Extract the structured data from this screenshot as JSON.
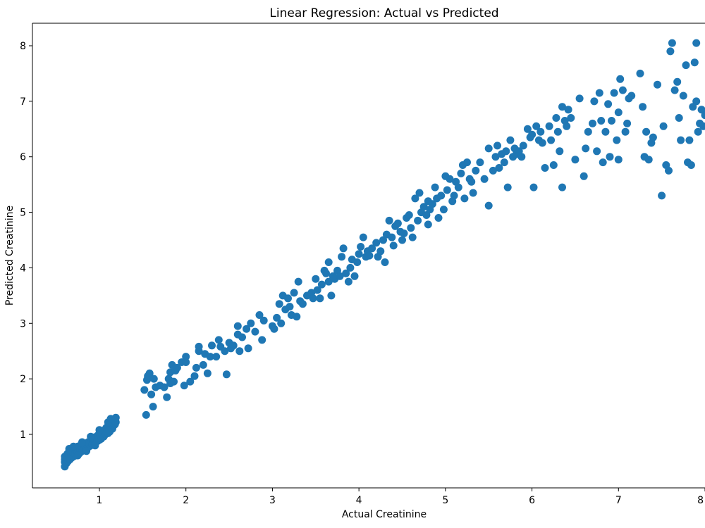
{
  "chart_data": {
    "type": "scatter",
    "title": "Linear Regression: Actual vs Predicted",
    "xlabel": "Actual Creatinine",
    "ylabel": "Predicted Creatinine",
    "xlim": [
      0.25,
      8.0
    ],
    "ylim": [
      0.3,
      8.4
    ],
    "xticks": [
      1,
      2,
      3,
      4,
      5,
      6,
      7,
      8
    ],
    "yticks": [
      1,
      2,
      3,
      4,
      5,
      6,
      7,
      8
    ],
    "grid": false,
    "marker_color": "#1f77b4",
    "points": [
      [
        0.6,
        0.42
      ],
      [
        0.6,
        0.5
      ],
      [
        0.6,
        0.55
      ],
      [
        0.6,
        0.6
      ],
      [
        0.62,
        0.48
      ],
      [
        0.62,
        0.58
      ],
      [
        0.63,
        0.65
      ],
      [
        0.64,
        0.52
      ],
      [
        0.65,
        0.6
      ],
      [
        0.65,
        0.7
      ],
      [
        0.66,
        0.55
      ],
      [
        0.67,
        0.62
      ],
      [
        0.68,
        0.68
      ],
      [
        0.68,
        0.58
      ],
      [
        0.7,
        0.6
      ],
      [
        0.7,
        0.72
      ],
      [
        0.7,
        0.66
      ],
      [
        0.72,
        0.64
      ],
      [
        0.72,
        0.75
      ],
      [
        0.73,
        0.7
      ],
      [
        0.74,
        0.62
      ],
      [
        0.75,
        0.68
      ],
      [
        0.75,
        0.78
      ],
      [
        0.76,
        0.72
      ],
      [
        0.77,
        0.66
      ],
      [
        0.78,
        0.74
      ],
      [
        0.78,
        0.8
      ],
      [
        0.8,
        0.7
      ],
      [
        0.8,
        0.77
      ],
      [
        0.8,
        0.82
      ],
      [
        0.82,
        0.75
      ],
      [
        0.82,
        0.72
      ],
      [
        0.83,
        0.8
      ],
      [
        0.84,
        0.78
      ],
      [
        0.85,
        0.84
      ],
      [
        0.85,
        0.74
      ],
      [
        0.86,
        0.8
      ],
      [
        0.87,
        0.86
      ],
      [
        0.88,
        0.78
      ],
      [
        0.88,
        0.83
      ],
      [
        0.9,
        0.8
      ],
      [
        0.9,
        0.88
      ],
      [
        0.9,
        0.85
      ],
      [
        0.91,
        0.92
      ],
      [
        0.92,
        0.82
      ],
      [
        0.93,
        0.87
      ],
      [
        0.94,
        0.9
      ],
      [
        0.95,
        0.85
      ],
      [
        0.95,
        0.95
      ],
      [
        0.96,
        0.9
      ],
      [
        0.97,
        0.93
      ],
      [
        0.98,
        0.88
      ],
      [
        0.98,
        0.98
      ],
      [
        1.0,
        0.9
      ],
      [
        1.0,
        0.95
      ],
      [
        1.0,
        1.02
      ],
      [
        1.01,
        0.97
      ],
      [
        1.02,
        0.92
      ],
      [
        1.03,
        1.0
      ],
      [
        1.04,
        1.05
      ],
      [
        1.05,
        0.96
      ],
      [
        1.05,
        1.02
      ],
      [
        1.06,
        1.08
      ],
      [
        1.07,
        1.0
      ],
      [
        1.08,
        1.05
      ],
      [
        1.08,
        1.12
      ],
      [
        1.1,
        1.02
      ],
      [
        1.1,
        1.08
      ],
      [
        1.1,
        1.15
      ],
      [
        1.11,
        1.1
      ],
      [
        1.12,
        1.05
      ],
      [
        1.13,
        1.12
      ],
      [
        1.14,
        1.18
      ],
      [
        1.15,
        1.1
      ],
      [
        1.15,
        1.2
      ],
      [
        1.16,
        1.15
      ],
      [
        1.17,
        1.25
      ],
      [
        1.18,
        1.18
      ],
      [
        1.19,
        1.22
      ],
      [
        1.19,
        1.3
      ],
      [
        0.65,
        0.74
      ],
      [
        0.7,
        0.78
      ],
      [
        0.8,
        0.86
      ],
      [
        0.9,
        0.96
      ],
      [
        1.0,
        1.08
      ],
      [
        1.1,
        1.22
      ],
      [
        1.13,
        1.28
      ],
      [
        0.75,
        0.62
      ],
      [
        0.85,
        0.7
      ],
      [
        0.95,
        0.8
      ],
      [
        1.52,
        1.8
      ],
      [
        1.54,
        1.35
      ],
      [
        1.55,
        1.98
      ],
      [
        1.56,
        2.05
      ],
      [
        1.58,
        2.1
      ],
      [
        1.6,
        1.72
      ],
      [
        1.62,
        1.5
      ],
      [
        1.63,
        2.0
      ],
      [
        1.65,
        1.85
      ],
      [
        1.7,
        1.88
      ],
      [
        1.75,
        1.85
      ],
      [
        1.78,
        1.67
      ],
      [
        1.8,
        2.0
      ],
      [
        1.82,
        1.92
      ],
      [
        1.82,
        2.12
      ],
      [
        1.84,
        2.25
      ],
      [
        1.86,
        1.95
      ],
      [
        1.88,
        2.15
      ],
      [
        1.9,
        2.2
      ],
      [
        1.95,
        2.3
      ],
      [
        1.98,
        1.88
      ],
      [
        2.0,
        2.4
      ],
      [
        2.0,
        2.3
      ],
      [
        2.05,
        1.95
      ],
      [
        2.1,
        2.05
      ],
      [
        2.12,
        2.2
      ],
      [
        2.15,
        2.5
      ],
      [
        2.15,
        2.58
      ],
      [
        2.2,
        2.25
      ],
      [
        2.22,
        2.45
      ],
      [
        2.25,
        2.1
      ],
      [
        2.28,
        2.4
      ],
      [
        2.3,
        2.6
      ],
      [
        2.35,
        2.4
      ],
      [
        2.38,
        2.7
      ],
      [
        2.4,
        2.58
      ],
      [
        2.45,
        2.5
      ],
      [
        2.47,
        2.08
      ],
      [
        2.5,
        2.65
      ],
      [
        2.52,
        2.55
      ],
      [
        2.55,
        2.6
      ],
      [
        2.6,
        2.8
      ],
      [
        2.6,
        2.95
      ],
      [
        2.62,
        2.5
      ],
      [
        2.65,
        2.75
      ],
      [
        2.7,
        2.9
      ],
      [
        2.72,
        2.55
      ],
      [
        2.75,
        3.0
      ],
      [
        2.8,
        2.85
      ],
      [
        2.85,
        3.15
      ],
      [
        2.88,
        2.7
      ],
      [
        2.9,
        3.05
      ],
      [
        3.0,
        2.95
      ],
      [
        3.02,
        2.9
      ],
      [
        3.05,
        3.1
      ],
      [
        3.08,
        3.35
      ],
      [
        3.1,
        3.0
      ],
      [
        3.12,
        3.5
      ],
      [
        3.15,
        3.25
      ],
      [
        3.18,
        3.45
      ],
      [
        3.2,
        3.3
      ],
      [
        3.22,
        3.15
      ],
      [
        3.25,
        3.55
      ],
      [
        3.28,
        3.12
      ],
      [
        3.3,
        3.75
      ],
      [
        3.32,
        3.4
      ],
      [
        3.35,
        3.35
      ],
      [
        3.4,
        3.5
      ],
      [
        3.45,
        3.55
      ],
      [
        3.47,
        3.45
      ],
      [
        3.5,
        3.8
      ],
      [
        3.52,
        3.6
      ],
      [
        3.55,
        3.45
      ],
      [
        3.57,
        3.7
      ],
      [
        3.6,
        3.95
      ],
      [
        3.62,
        3.9
      ],
      [
        3.65,
        3.75
      ],
      [
        3.65,
        4.1
      ],
      [
        3.68,
        3.5
      ],
      [
        3.7,
        3.85
      ],
      [
        3.72,
        3.8
      ],
      [
        3.75,
        3.95
      ],
      [
        3.78,
        3.85
      ],
      [
        3.8,
        4.2
      ],
      [
        3.82,
        4.35
      ],
      [
        3.85,
        3.9
      ],
      [
        3.88,
        3.75
      ],
      [
        3.9,
        4.0
      ],
      [
        3.92,
        4.15
      ],
      [
        3.95,
        3.85
      ],
      [
        3.98,
        4.1
      ],
      [
        4.0,
        4.25
      ],
      [
        4.02,
        4.38
      ],
      [
        4.05,
        4.55
      ],
      [
        4.08,
        4.2
      ],
      [
        4.1,
        4.3
      ],
      [
        4.12,
        4.22
      ],
      [
        4.15,
        4.35
      ],
      [
        4.2,
        4.45
      ],
      [
        4.22,
        4.2
      ],
      [
        4.25,
        4.3
      ],
      [
        4.28,
        4.5
      ],
      [
        4.3,
        4.1
      ],
      [
        4.32,
        4.6
      ],
      [
        4.35,
        4.85
      ],
      [
        4.38,
        4.55
      ],
      [
        4.4,
        4.4
      ],
      [
        4.42,
        4.75
      ],
      [
        4.45,
        4.8
      ],
      [
        4.48,
        4.65
      ],
      [
        4.5,
        4.5
      ],
      [
        4.52,
        4.62
      ],
      [
        4.55,
        4.9
      ],
      [
        4.58,
        4.95
      ],
      [
        4.6,
        4.72
      ],
      [
        4.62,
        4.55
      ],
      [
        4.65,
        5.25
      ],
      [
        4.68,
        4.85
      ],
      [
        4.7,
        5.35
      ],
      [
        4.72,
        5.0
      ],
      [
        4.75,
        5.1
      ],
      [
        4.78,
        4.95
      ],
      [
        4.8,
        5.2
      ],
      [
        4.8,
        4.78
      ],
      [
        4.82,
        5.05
      ],
      [
        4.85,
        5.15
      ],
      [
        4.88,
        5.45
      ],
      [
        4.9,
        5.25
      ],
      [
        4.92,
        4.9
      ],
      [
        4.95,
        5.3
      ],
      [
        4.98,
        5.05
      ],
      [
        5.0,
        5.65
      ],
      [
        5.02,
        5.4
      ],
      [
        5.05,
        5.6
      ],
      [
        5.08,
        5.2
      ],
      [
        5.1,
        5.3
      ],
      [
        5.12,
        5.55
      ],
      [
        5.15,
        5.45
      ],
      [
        5.18,
        5.7
      ],
      [
        5.2,
        5.85
      ],
      [
        5.22,
        5.25
      ],
      [
        5.25,
        5.9
      ],
      [
        5.28,
        5.6
      ],
      [
        5.3,
        5.55
      ],
      [
        5.32,
        5.35
      ],
      [
        5.35,
        5.75
      ],
      [
        5.4,
        5.9
      ],
      [
        5.45,
        5.6
      ],
      [
        5.5,
        6.15
      ],
      [
        5.5,
        5.12
      ],
      [
        5.55,
        5.75
      ],
      [
        5.58,
        6.0
      ],
      [
        5.6,
        6.2
      ],
      [
        5.62,
        5.8
      ],
      [
        5.65,
        6.05
      ],
      [
        5.68,
        5.9
      ],
      [
        5.7,
        6.1
      ],
      [
        5.72,
        5.45
      ],
      [
        5.75,
        6.3
      ],
      [
        5.78,
        6.0
      ],
      [
        5.8,
        6.15
      ],
      [
        5.82,
        6.05
      ],
      [
        5.85,
        6.1
      ],
      [
        5.88,
        6.0
      ],
      [
        5.9,
        6.2
      ],
      [
        5.95,
        6.5
      ],
      [
        5.98,
        6.35
      ],
      [
        6.0,
        6.4
      ],
      [
        6.02,
        5.45
      ],
      [
        6.05,
        6.55
      ],
      [
        6.08,
        6.3
      ],
      [
        6.1,
        6.45
      ],
      [
        6.12,
        6.25
      ],
      [
        6.15,
        5.8
      ],
      [
        6.2,
        6.55
      ],
      [
        6.22,
        6.3
      ],
      [
        6.25,
        5.85
      ],
      [
        6.28,
        6.7
      ],
      [
        6.3,
        6.45
      ],
      [
        6.32,
        6.1
      ],
      [
        6.35,
        6.9
      ],
      [
        6.35,
        5.45
      ],
      [
        6.38,
        6.65
      ],
      [
        6.4,
        6.55
      ],
      [
        6.42,
        6.85
      ],
      [
        6.45,
        6.7
      ],
      [
        6.5,
        5.95
      ],
      [
        6.55,
        7.05
      ],
      [
        6.6,
        5.65
      ],
      [
        6.62,
        6.15
      ],
      [
        6.65,
        6.45
      ],
      [
        6.7,
        6.6
      ],
      [
        6.72,
        7.0
      ],
      [
        6.75,
        6.1
      ],
      [
        6.78,
        7.15
      ],
      [
        6.8,
        6.65
      ],
      [
        6.82,
        5.9
      ],
      [
        6.85,
        6.45
      ],
      [
        6.88,
        6.95
      ],
      [
        6.9,
        6.0
      ],
      [
        6.92,
        6.65
      ],
      [
        6.95,
        7.15
      ],
      [
        6.98,
        6.3
      ],
      [
        7.0,
        6.8
      ],
      [
        7.0,
        5.95
      ],
      [
        7.02,
        7.4
      ],
      [
        7.05,
        7.2
      ],
      [
        7.08,
        6.45
      ],
      [
        7.1,
        6.6
      ],
      [
        7.12,
        7.05
      ],
      [
        7.15,
        7.1
      ],
      [
        7.25,
        7.5
      ],
      [
        7.28,
        6.9
      ],
      [
        7.3,
        6.0
      ],
      [
        7.32,
        6.45
      ],
      [
        7.35,
        5.95
      ],
      [
        7.38,
        6.25
      ],
      [
        7.4,
        6.35
      ],
      [
        7.45,
        7.3
      ],
      [
        7.5,
        5.3
      ],
      [
        7.52,
        6.55
      ],
      [
        7.55,
        5.85
      ],
      [
        7.58,
        5.75
      ],
      [
        7.6,
        7.9
      ],
      [
        7.62,
        8.05
      ],
      [
        7.65,
        7.2
      ],
      [
        7.68,
        7.35
      ],
      [
        7.7,
        6.7
      ],
      [
        7.72,
        6.3
      ],
      [
        7.75,
        7.1
      ],
      [
        7.78,
        7.65
      ],
      [
        7.8,
        5.9
      ],
      [
        7.82,
        6.3
      ],
      [
        7.84,
        5.85
      ],
      [
        7.86,
        6.9
      ],
      [
        7.88,
        7.7
      ],
      [
        7.9,
        8.05
      ],
      [
        7.9,
        7.0
      ],
      [
        7.92,
        6.45
      ],
      [
        7.94,
        6.6
      ],
      [
        7.96,
        6.85
      ],
      [
        7.98,
        6.55
      ],
      [
        8.0,
        6.75
      ]
    ]
  }
}
